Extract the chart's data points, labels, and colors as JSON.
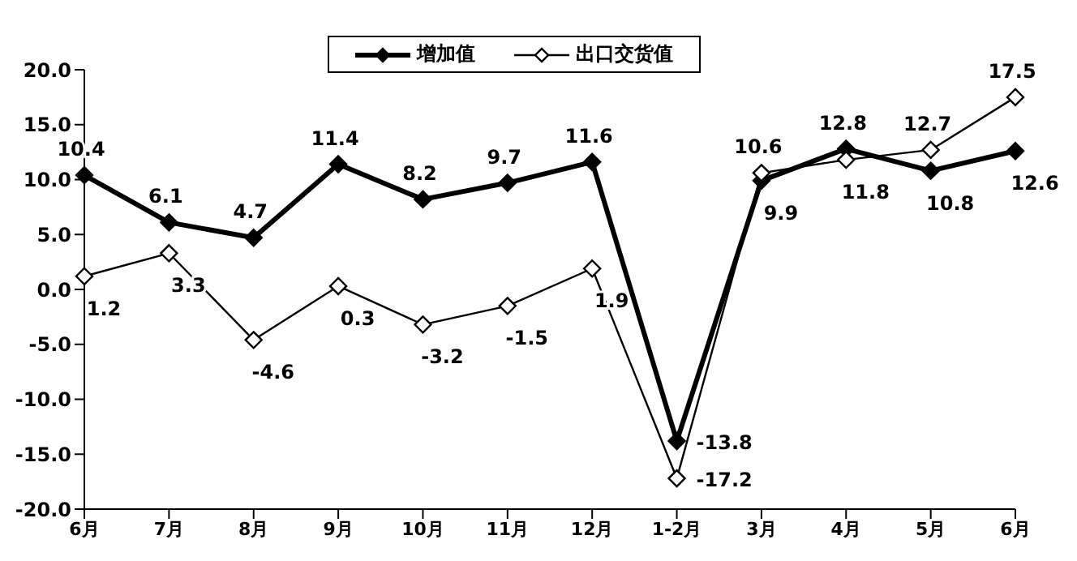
{
  "chart_data": {
    "type": "line",
    "categories": [
      "6月",
      "7月",
      "8月",
      "9月",
      "10月",
      "11月",
      "12月",
      "1-2月",
      "3月",
      "4月",
      "5月",
      "6月"
    ],
    "series": [
      {
        "name": "增加值",
        "color": "#000000",
        "values": [
          10.4,
          6.1,
          4.7,
          11.4,
          8.2,
          9.7,
          11.6,
          -13.8,
          9.9,
          12.8,
          10.8,
          12.6
        ]
      },
      {
        "name": "出口交货值",
        "color": "#000000",
        "values": [
          1.2,
          3.3,
          -4.6,
          0.3,
          -3.2,
          -1.5,
          1.9,
          -17.2,
          10.6,
          11.8,
          12.7,
          17.5
        ]
      }
    ],
    "ylim": [
      -20,
      20
    ],
    "yticks": [
      {
        "value": -20,
        "label": "-20.0"
      },
      {
        "value": -15,
        "label": "-15.0"
      },
      {
        "value": -10,
        "label": "-10.0"
      },
      {
        "value": -5,
        "label": "-5.0"
      },
      {
        "value": 0,
        "label": "0.0"
      },
      {
        "value": 5,
        "label": "5.0"
      },
      {
        "value": 10,
        "label": "10.0"
      },
      {
        "value": 15,
        "label": "15.0"
      },
      {
        "value": 20,
        "label": "20.0"
      }
    ],
    "grid": false,
    "legend": "top",
    "marker": "diamond",
    "data_labels": true
  }
}
